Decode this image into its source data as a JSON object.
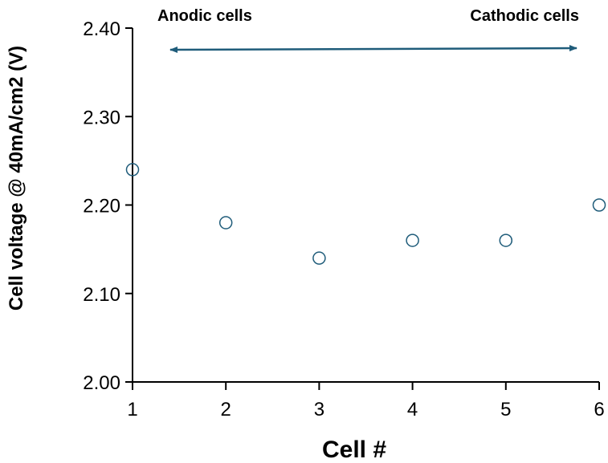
{
  "chart_data": {
    "type": "scatter",
    "title": "",
    "xlabel": "Cell #",
    "ylabel": "Cell voltage @ 40mA/cm2 (V)",
    "xlim": [
      1,
      6
    ],
    "ylim": [
      2.0,
      2.4
    ],
    "x_ticks": [
      "1",
      "2",
      "3",
      "4",
      "5",
      "6"
    ],
    "y_ticks": [
      "2.00",
      "2.10",
      "2.20",
      "2.30",
      "2.40"
    ],
    "grid": false,
    "legend": false,
    "series": [
      {
        "x": [
          1,
          2,
          3,
          4,
          5,
          6
        ],
        "y": [
          2.24,
          2.18,
          2.14,
          2.16,
          2.16,
          2.2
        ]
      }
    ],
    "annotations": [
      {
        "text": "Anodic cells"
      },
      {
        "text": "Cathodic cells"
      }
    ],
    "marker_color": "#1F5C7A",
    "arrow_color": "#1F5C7A"
  }
}
